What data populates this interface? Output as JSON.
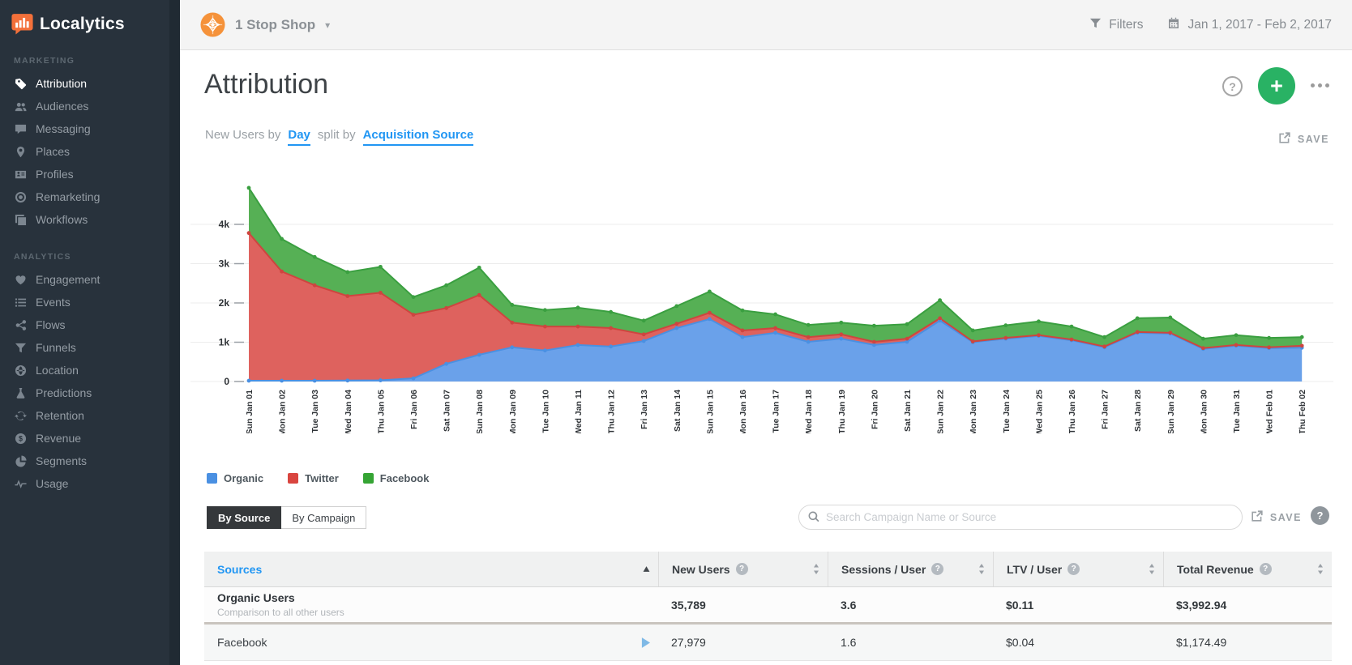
{
  "brand": {
    "name": "Localytics"
  },
  "sidebar": {
    "sections": [
      {
        "label": "MARKETING",
        "items": [
          {
            "label": "Attribution",
            "icon": "tag-icon",
            "active": true
          },
          {
            "label": "Audiences",
            "icon": "users-icon"
          },
          {
            "label": "Messaging",
            "icon": "chat-icon"
          },
          {
            "label": "Places",
            "icon": "map-pin-icon"
          },
          {
            "label": "Profiles",
            "icon": "id-card-icon"
          },
          {
            "label": "Remarketing",
            "icon": "target-icon"
          },
          {
            "label": "Workflows",
            "icon": "windows-icon"
          }
        ]
      },
      {
        "label": "ANALYTICS",
        "items": [
          {
            "label": "Engagement",
            "icon": "heart-icon"
          },
          {
            "label": "Events",
            "icon": "list-icon"
          },
          {
            "label": "Flows",
            "icon": "share-nodes-icon"
          },
          {
            "label": "Funnels",
            "icon": "funnel-icon"
          },
          {
            "label": "Location",
            "icon": "globe-icon"
          },
          {
            "label": "Predictions",
            "icon": "flask-icon"
          },
          {
            "label": "Retention",
            "icon": "refresh-icon"
          },
          {
            "label": "Revenue",
            "icon": "dollar-icon"
          },
          {
            "label": "Segments",
            "icon": "pie-icon"
          },
          {
            "label": "Usage",
            "icon": "pulse-icon"
          }
        ]
      }
    ]
  },
  "topbar": {
    "account_name": "1 Stop Shop",
    "filters_label": "Filters",
    "date_range": "Jan 1, 2017 - Feb 2, 2017"
  },
  "header": {
    "title": "Attribution",
    "save_label": "SAVE"
  },
  "controls": {
    "prefix": "New Users by",
    "metric": "Day",
    "middle": "split by",
    "split": "Acquisition Source"
  },
  "chart_data": {
    "type": "area",
    "stacked": true,
    "title": "New Users by Day split by Acquisition Source",
    "ylim": [
      0,
      5000
    ],
    "grid": true,
    "legend_position": "bottom",
    "y_ticks": [
      {
        "label": "0",
        "value": 0
      },
      {
        "label": "1k",
        "value": 1000
      },
      {
        "label": "2k",
        "value": 2000
      },
      {
        "label": "3k",
        "value": 3000
      },
      {
        "label": "4k",
        "value": 4000
      }
    ],
    "x": [
      "Sun Jan 01",
      "Mon Jan 02",
      "Tue Jan 03",
      "Wed Jan 04",
      "Thu Jan 05",
      "Fri Jan 06",
      "Sat Jan 07",
      "Sun Jan 08",
      "Mon Jan 09",
      "Tue Jan 10",
      "Wed Jan 11",
      "Thu Jan 12",
      "Fri Jan 13",
      "Sat Jan 14",
      "Sun Jan 15",
      "Mon Jan 16",
      "Tue Jan 17",
      "Wed Jan 18",
      "Thu Jan 19",
      "Fri Jan 20",
      "Sat Jan 21",
      "Sun Jan 22",
      "Mon Jan 23",
      "Tue Jan 24",
      "Wed Jan 25",
      "Thu Jan 26",
      "Fri Jan 27",
      "Sat Jan 28",
      "Sun Jan 29",
      "Mon Jan 30",
      "Tue Jan 31",
      "Wed Feb 01",
      "Thu Feb 02"
    ],
    "series": [
      {
        "name": "Organic",
        "fill": "#6aa1ea",
        "line": "#4a90e2",
        "values": [
          20,
          20,
          20,
          25,
          30,
          80,
          450,
          680,
          870,
          790,
          930,
          890,
          1030,
          1360,
          1590,
          1130,
          1240,
          1010,
          1090,
          930,
          1010,
          1550,
          1000,
          1090,
          1160,
          1050,
          870,
          1240,
          1220,
          830,
          910,
          850,
          860
        ]
      },
      {
        "name": "Twitter",
        "fill": "#de625e",
        "line": "#ce453f",
        "values": [
          3760,
          2780,
          2430,
          2150,
          2230,
          1620,
          1420,
          1520,
          630,
          610,
          470,
          470,
          170,
          110,
          160,
          170,
          120,
          120,
          110,
          80,
          80,
          60,
          20,
          20,
          20,
          20,
          20,
          20,
          20,
          20,
          20,
          20,
          50
        ]
      },
      {
        "name": "Facebook",
        "fill": "#56b055",
        "line": "#3a9f40",
        "values": [
          1150,
          830,
          720,
          610,
          660,
          450,
          580,
          700,
          450,
          420,
          480,
          410,
          350,
          450,
          540,
          510,
          350,
          310,
          300,
          410,
          370,
          460,
          280,
          320,
          350,
          330,
          240,
          350,
          390,
          240,
          250,
          240,
          220
        ]
      }
    ]
  },
  "legend": [
    {
      "label": "Organic",
      "color": "#4a90e2"
    },
    {
      "label": "Twitter",
      "color": "#d9453f"
    },
    {
      "label": "Facebook",
      "color": "#35a434"
    }
  ],
  "table": {
    "tabs": [
      {
        "label": "By Source",
        "active": true
      },
      {
        "label": "By Campaign",
        "active": false
      }
    ],
    "search_placeholder": "Search Campaign Name or Source",
    "save_label": "SAVE",
    "columns": [
      "Sources",
      "New Users",
      "Sessions / User",
      "LTV / User",
      "Total Revenue"
    ],
    "rows": [
      {
        "name": "Organic Users",
        "subtitle": "Comparison to all other users",
        "new_users": "35,789",
        "sessions_per_user": "3.6",
        "ltv_per_user": "$0.11",
        "total_revenue": "$3,992.94"
      },
      {
        "name": "Facebook",
        "new_users": "27,979",
        "sessions_per_user": "1.6",
        "ltv_per_user": "$0.04",
        "total_revenue": "$1,174.49"
      }
    ]
  }
}
